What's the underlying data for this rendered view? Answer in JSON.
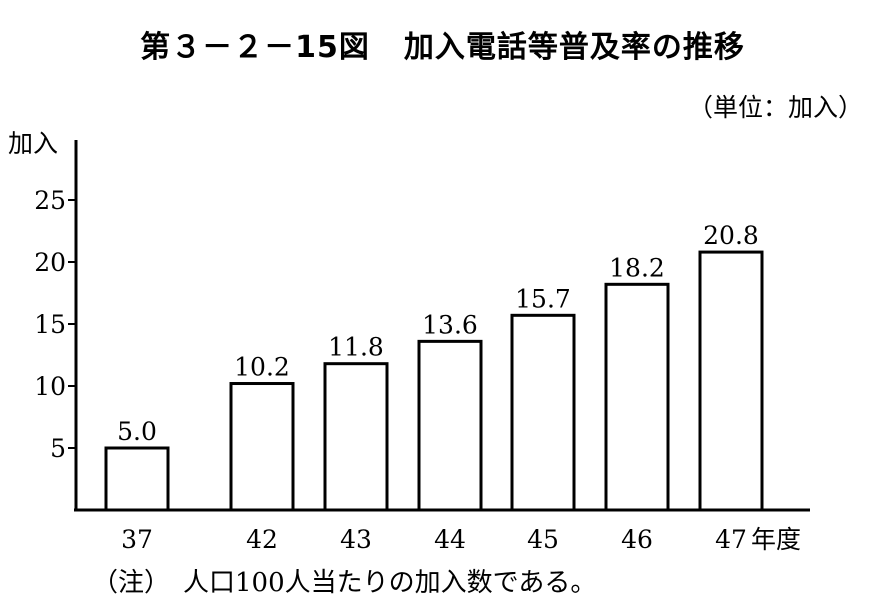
{
  "header": {
    "figure_number": "第３－２－15図",
    "title": "加入電話等普及率の推移",
    "unit": "（単位：加入）"
  },
  "note": "（注）　人口100人当たりの加入数である。",
  "chart_data": {
    "type": "bar",
    "title": "加入電話等普及率の推移",
    "ylabel": "加入",
    "xunit": "年度",
    "categories": [
      "37",
      "42",
      "43",
      "44",
      "45",
      "46",
      "47"
    ],
    "values": [
      5.0,
      10.2,
      11.8,
      13.6,
      15.7,
      18.2,
      20.8
    ],
    "value_labels": [
      "5.0",
      "10.2",
      "11.8",
      "13.6",
      "15.7",
      "18.2",
      "20.8"
    ],
    "ylim": [
      0,
      30
    ],
    "yticks": [
      5,
      10,
      15,
      20,
      25
    ],
    "grid": false,
    "colors": {
      "bar_fill": "#ffffff",
      "bar_stroke": "#000000"
    }
  }
}
